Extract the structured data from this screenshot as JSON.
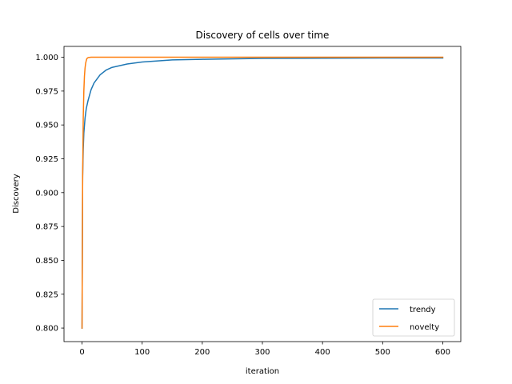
{
  "chart_data": {
    "type": "line",
    "title": "Discovery of cells over time",
    "xlabel": "iteration",
    "ylabel": "Discovery",
    "xlim": [
      -30,
      630
    ],
    "ylim": [
      0.79,
      1.008
    ],
    "xticks": [
      0,
      100,
      200,
      300,
      400,
      500,
      600
    ],
    "xtick_labels": [
      "0",
      "100",
      "200",
      "300",
      "400",
      "500",
      "600"
    ],
    "yticks": [
      0.8,
      0.825,
      0.85,
      0.875,
      0.9,
      0.925,
      0.95,
      0.975,
      1.0
    ],
    "ytick_labels": [
      "0.800",
      "0.825",
      "0.850",
      "0.875",
      "0.900",
      "0.925",
      "0.950",
      "0.975",
      "1.000"
    ],
    "grid": false,
    "legend_position": "lower-right",
    "series": [
      {
        "name": "trendy",
        "color": "#1f77b4",
        "x": [
          0,
          1,
          2,
          3,
          5,
          7,
          10,
          15,
          20,
          30,
          40,
          50,
          75,
          100,
          150,
          200,
          300,
          400,
          500,
          600
        ],
        "y": [
          0.8,
          0.912,
          0.932,
          0.944,
          0.955,
          0.962,
          0.968,
          0.976,
          0.981,
          0.987,
          0.9905,
          0.9925,
          0.995,
          0.9965,
          0.998,
          0.9985,
          0.9991,
          0.9993,
          0.9994,
          0.9994
        ]
      },
      {
        "name": "novelty",
        "color": "#ff7f0e",
        "x": [
          0,
          1,
          2,
          3,
          4,
          5,
          6,
          7,
          8,
          10,
          15,
          600
        ],
        "y": [
          0.8,
          0.91,
          0.955,
          0.975,
          0.986,
          0.992,
          0.9955,
          0.9975,
          0.999,
          0.9997,
          1.0,
          1.0
        ]
      }
    ]
  }
}
